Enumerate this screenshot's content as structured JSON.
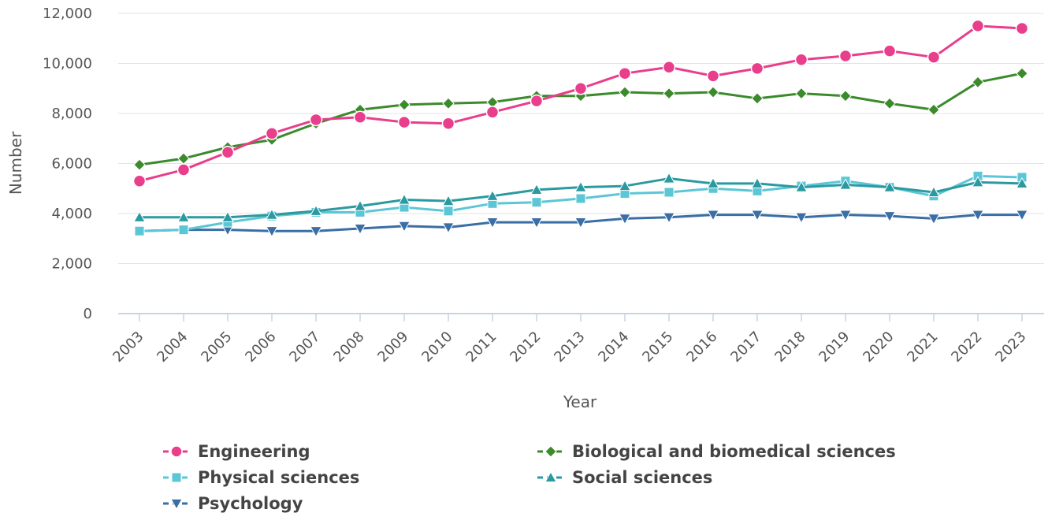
{
  "chart_data": {
    "type": "line",
    "xlabel": "Year",
    "ylabel": "Number",
    "ylim": [
      0,
      12000
    ],
    "yticks": [
      "0",
      "2,000",
      "4,000",
      "6,000",
      "8,000",
      "10,000",
      "12,000"
    ],
    "x": [
      "2003",
      "2004",
      "2005",
      "2006",
      "2007",
      "2008",
      "2009",
      "2010",
      "2011",
      "2012",
      "2013",
      "2014",
      "2015",
      "2016",
      "2017",
      "2018",
      "2019",
      "2020",
      "2021",
      "2022",
      "2023"
    ],
    "grid": "horizontal",
    "legend_position": "bottom",
    "series": [
      {
        "name": "Engineering",
        "color": "#e83e8c",
        "marker": "circle",
        "values": [
          5300,
          5750,
          6450,
          7200,
          7750,
          7850,
          7650,
          7600,
          8050,
          8500,
          9000,
          9600,
          9850,
          9500,
          9800,
          10150,
          10300,
          10500,
          10250,
          11500,
          11400
        ]
      },
      {
        "name": "Biological and biomedical sciences",
        "color": "#3b8a2c",
        "marker": "diamond",
        "values": [
          5950,
          6200,
          6650,
          6950,
          7600,
          8150,
          8350,
          8400,
          8450,
          8700,
          8700,
          8850,
          8800,
          8850,
          8600,
          8800,
          8700,
          8400,
          8150,
          9250,
          9600
        ]
      },
      {
        "name": "Physical sciences",
        "color": "#5bc6d6",
        "marker": "square",
        "values": [
          3300,
          3350,
          3650,
          3900,
          4050,
          4050,
          4250,
          4100,
          4400,
          4450,
          4600,
          4800,
          4850,
          5000,
          4900,
          5100,
          5300,
          5050,
          4700,
          5500,
          5450
        ]
      },
      {
        "name": "Social sciences",
        "color": "#2b9aa0",
        "marker": "triangle-up",
        "values": [
          3850,
          3850,
          3850,
          3950,
          4100,
          4300,
          4550,
          4500,
          4700,
          4950,
          5050,
          5100,
          5400,
          5200,
          5200,
          5050,
          5150,
          5050,
          4850,
          5250,
          5200
        ]
      },
      {
        "name": "Psychology",
        "color": "#3a6ea5",
        "marker": "triangle-down",
        "values": [
          3300,
          3350,
          3350,
          3300,
          3300,
          3400,
          3500,
          3450,
          3650,
          3650,
          3650,
          3800,
          3850,
          3950,
          3950,
          3850,
          3950,
          3900,
          3800,
          3950,
          3950
        ]
      }
    ]
  }
}
